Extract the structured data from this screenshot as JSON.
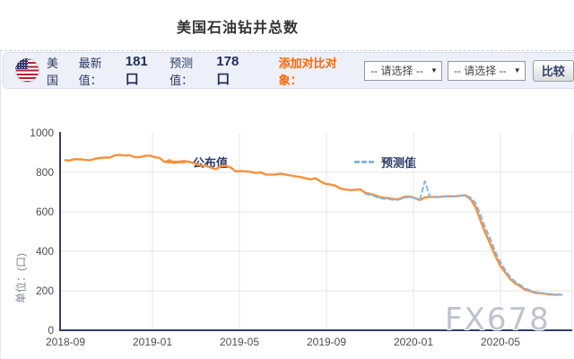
{
  "page": {
    "title": "美国石油钻井总数"
  },
  "toolbar": {
    "country": "美国",
    "flag_icon": "us-flag",
    "latest_label": "最新值：",
    "latest_value": "181口",
    "forecast_label": "预测值：",
    "forecast_value": "178口",
    "compare_label": "添加对比对象：",
    "select_placeholder": "-- 请选择 --",
    "dropdown_arrow_icon": "▼",
    "compare_button": "比较"
  },
  "watermark": "FX678",
  "colors": {
    "published_line": "#f8913c",
    "forecast_line": "#86b6e6",
    "axis": "#333f63",
    "grid": "#e4e4e6",
    "tick_label": "#4d4d50",
    "accent_orange": "#f60",
    "toolbar_bg": "#eef0f9",
    "navy_text": "#2b3a67"
  },
  "chart_data": {
    "type": "line",
    "title": "美国石油钻井总数",
    "xlabel": "",
    "ylabel": "单位：(口)",
    "ylim": [
      0,
      1000
    ],
    "yticks": [
      0,
      200,
      400,
      600,
      800,
      1000
    ],
    "xticks": [
      "2018-09",
      "2019-01",
      "2019-05",
      "2019-09",
      "2020-01",
      "2020-05"
    ],
    "grid": true,
    "legend_position": "top",
    "series": [
      {
        "name": "公布值",
        "color": "#f8913c",
        "dashed": false,
        "points": [
          [
            "2018-08-31",
            862
          ],
          [
            "2018-09-07",
            860
          ],
          [
            "2018-09-14",
            867
          ],
          [
            "2018-09-21",
            866
          ],
          [
            "2018-09-28",
            863
          ],
          [
            "2018-10-05",
            861
          ],
          [
            "2018-10-12",
            869
          ],
          [
            "2018-10-19",
            873
          ],
          [
            "2018-10-26",
            875
          ],
          [
            "2018-11-02",
            874
          ],
          [
            "2018-11-09",
            886
          ],
          [
            "2018-11-16",
            888
          ],
          [
            "2018-11-23",
            885
          ],
          [
            "2018-11-30",
            887
          ],
          [
            "2018-12-07",
            877
          ],
          [
            "2018-12-14",
            877
          ],
          [
            "2018-12-21",
            883
          ],
          [
            "2018-12-28",
            885
          ],
          [
            "2019-01-04",
            877
          ],
          [
            "2019-01-11",
            873
          ],
          [
            "2019-01-18",
            852
          ],
          [
            "2019-01-25",
            862
          ],
          [
            "2019-02-01",
            847
          ],
          [
            "2019-02-08",
            854
          ],
          [
            "2019-02-15",
            857
          ],
          [
            "2019-02-22",
            853
          ],
          [
            "2019-03-01",
            843
          ],
          [
            "2019-03-08",
            834
          ],
          [
            "2019-03-15",
            833
          ],
          [
            "2019-03-22",
            824
          ],
          [
            "2019-03-29",
            816
          ],
          [
            "2019-04-05",
            831
          ],
          [
            "2019-04-12",
            833
          ],
          [
            "2019-04-19",
            825
          ],
          [
            "2019-04-26",
            805
          ],
          [
            "2019-05-03",
            807
          ],
          [
            "2019-05-10",
            805
          ],
          [
            "2019-05-17",
            802
          ],
          [
            "2019-05-24",
            797
          ],
          [
            "2019-05-31",
            800
          ],
          [
            "2019-06-07",
            789
          ],
          [
            "2019-06-14",
            788
          ],
          [
            "2019-06-21",
            789
          ],
          [
            "2019-06-28",
            793
          ],
          [
            "2019-07-05",
            788
          ],
          [
            "2019-07-12",
            784
          ],
          [
            "2019-07-19",
            779
          ],
          [
            "2019-07-26",
            776
          ],
          [
            "2019-08-02",
            770
          ],
          [
            "2019-08-09",
            764
          ],
          [
            "2019-08-16",
            770
          ],
          [
            "2019-08-23",
            754
          ],
          [
            "2019-08-30",
            742
          ],
          [
            "2019-09-06",
            738
          ],
          [
            "2019-09-13",
            733
          ],
          [
            "2019-09-20",
            719
          ],
          [
            "2019-09-27",
            713
          ],
          [
            "2019-10-04",
            710
          ],
          [
            "2019-10-11",
            712
          ],
          [
            "2019-10-18",
            713
          ],
          [
            "2019-10-25",
            696
          ],
          [
            "2019-11-01",
            691
          ],
          [
            "2019-11-08",
            684
          ],
          [
            "2019-11-15",
            674
          ],
          [
            "2019-11-22",
            671
          ],
          [
            "2019-11-29",
            668
          ],
          [
            "2019-12-06",
            663
          ],
          [
            "2019-12-13",
            667
          ],
          [
            "2019-12-20",
            677
          ],
          [
            "2019-12-27",
            677
          ],
          [
            "2020-01-03",
            670
          ],
          [
            "2020-01-10",
            659
          ],
          [
            "2020-01-17",
            673
          ],
          [
            "2020-01-24",
            676
          ],
          [
            "2020-01-31",
            675
          ],
          [
            "2020-02-07",
            676
          ],
          [
            "2020-02-14",
            678
          ],
          [
            "2020-02-21",
            679
          ],
          [
            "2020-02-28",
            678
          ],
          [
            "2020-03-06",
            682
          ],
          [
            "2020-03-13",
            683
          ],
          [
            "2020-03-20",
            664
          ],
          [
            "2020-03-27",
            624
          ],
          [
            "2020-04-03",
            562
          ],
          [
            "2020-04-09",
            504
          ],
          [
            "2020-04-17",
            438
          ],
          [
            "2020-04-24",
            378
          ],
          [
            "2020-05-01",
            325
          ],
          [
            "2020-05-08",
            292
          ],
          [
            "2020-05-15",
            258
          ],
          [
            "2020-05-22",
            237
          ],
          [
            "2020-05-29",
            222
          ],
          [
            "2020-06-05",
            206
          ],
          [
            "2020-06-12",
            199
          ],
          [
            "2020-06-19",
            189
          ],
          [
            "2020-06-26",
            188
          ],
          [
            "2020-07-02",
            185
          ],
          [
            "2020-07-10",
            181
          ],
          [
            "2020-07-17",
            180
          ],
          [
            "2020-07-24",
            181
          ]
        ]
      },
      {
        "name": "预测值",
        "color": "#86b6e6",
        "dashed": true,
        "points": [
          [
            "2019-10-25",
            690
          ],
          [
            "2019-11-01",
            686
          ],
          [
            "2019-11-08",
            678
          ],
          [
            "2019-11-15",
            668
          ],
          [
            "2019-11-22",
            666
          ],
          [
            "2019-11-29",
            663
          ],
          [
            "2019-12-06",
            659
          ],
          [
            "2019-12-13",
            663
          ],
          [
            "2019-12-20",
            672
          ],
          [
            "2019-12-27",
            675
          ],
          [
            "2020-01-03",
            668
          ],
          [
            "2020-01-10",
            660
          ],
          [
            "2020-01-17",
            755
          ],
          [
            "2020-01-24",
            676
          ],
          [
            "2020-01-31",
            674
          ],
          [
            "2020-02-07",
            675
          ],
          [
            "2020-02-14",
            677
          ],
          [
            "2020-02-21",
            678
          ],
          [
            "2020-02-28",
            678
          ],
          [
            "2020-03-06",
            681
          ],
          [
            "2020-03-13",
            684
          ],
          [
            "2020-03-20",
            672
          ],
          [
            "2020-03-27",
            645
          ],
          [
            "2020-04-03",
            590
          ],
          [
            "2020-04-09",
            530
          ],
          [
            "2020-04-17",
            465
          ],
          [
            "2020-04-24",
            400
          ],
          [
            "2020-05-01",
            345
          ],
          [
            "2020-05-08",
            303
          ],
          [
            "2020-05-15",
            268
          ],
          [
            "2020-05-22",
            245
          ],
          [
            "2020-05-29",
            229
          ],
          [
            "2020-06-05",
            212
          ],
          [
            "2020-06-12",
            203
          ],
          [
            "2020-06-19",
            193
          ],
          [
            "2020-06-26",
            190
          ],
          [
            "2020-07-02",
            187
          ],
          [
            "2020-07-10",
            184
          ],
          [
            "2020-07-17",
            181
          ],
          [
            "2020-07-24",
            180
          ],
          [
            "2020-07-31",
            178
          ]
        ]
      }
    ]
  }
}
